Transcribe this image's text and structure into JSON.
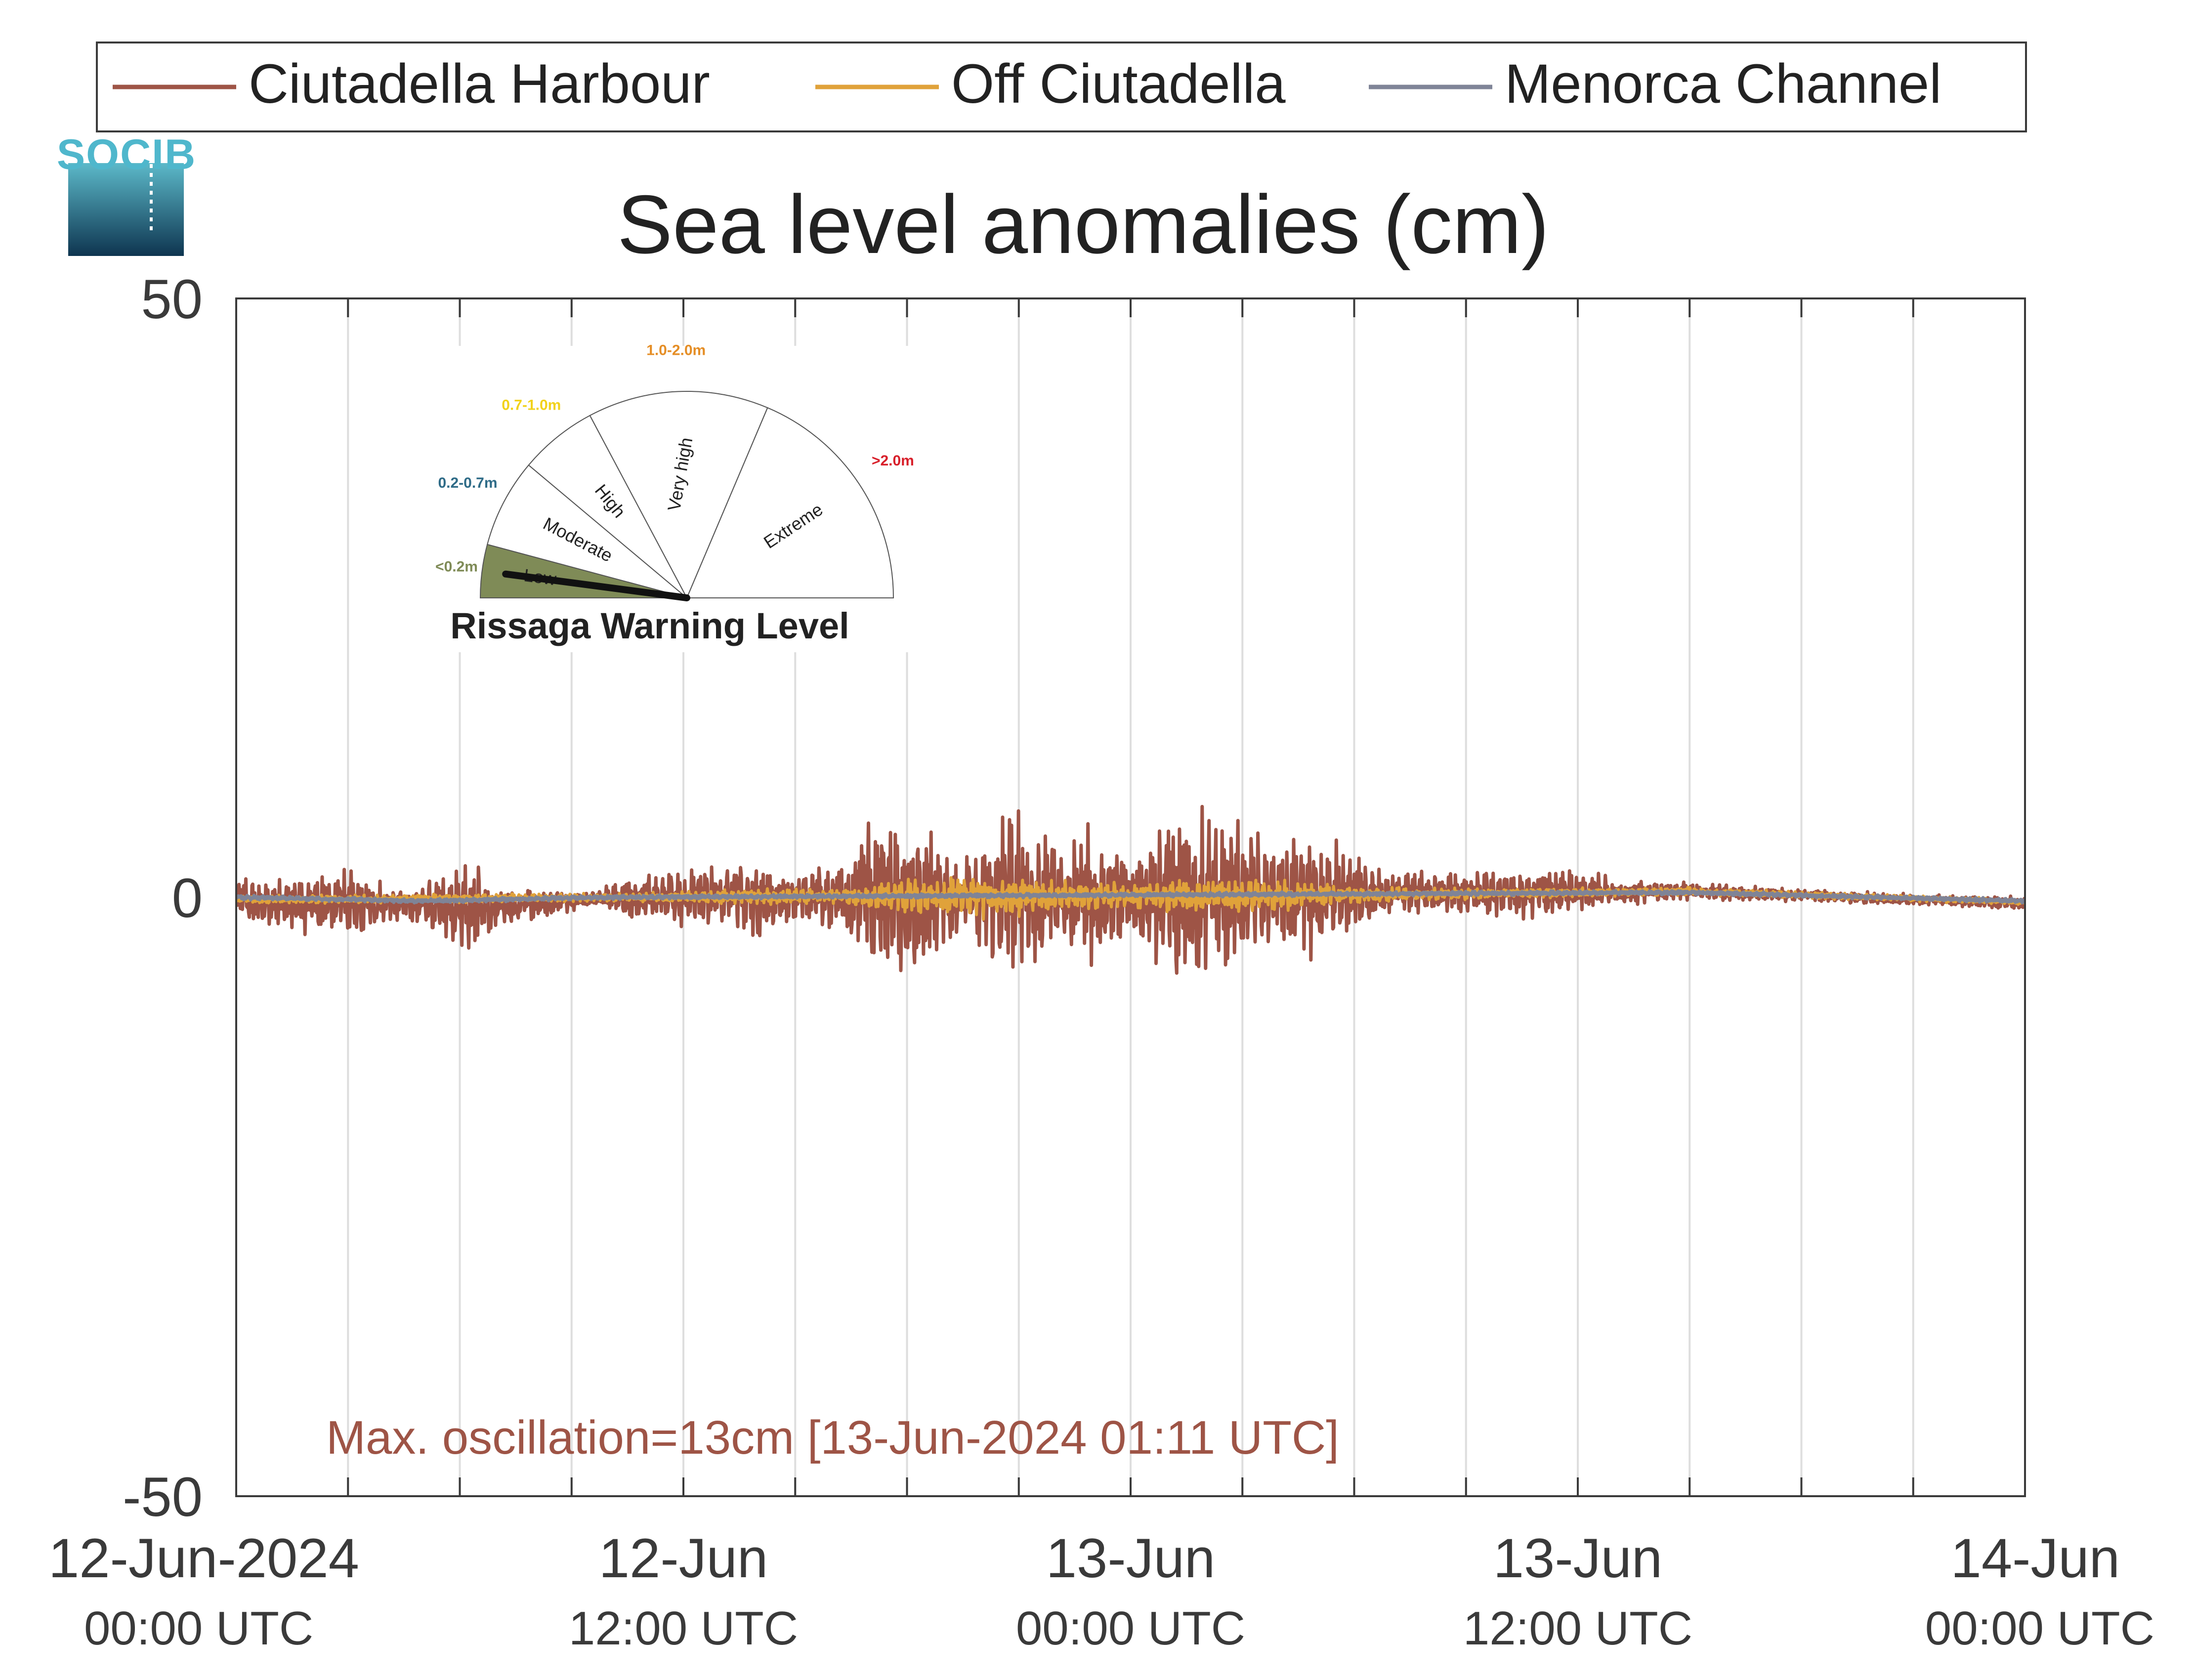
{
  "logo": {
    "text": "SOCIB",
    "colors": {
      "text": "#4fb7cc",
      "top": "#5cb9c9",
      "bottom": "#0e3550"
    }
  },
  "legend": {
    "placement": "top",
    "items": [
      {
        "label": "Ciutadella Harbour",
        "color": "#9e5446"
      },
      {
        "label": "Off Ciutadella",
        "color": "#e0a23a"
      },
      {
        "label": "Menorca Channel",
        "color": "#7f8497"
      }
    ]
  },
  "chart_data": {
    "type": "line",
    "title": "Sea level anomalies (cm)",
    "xlabel": "",
    "ylabel": "",
    "ylim": [
      -50,
      50
    ],
    "yticks": [
      {
        "value": 50,
        "label": "50"
      },
      {
        "value": 0,
        "label": "0"
      },
      {
        "value": -50,
        "label": "-50"
      }
    ],
    "x_range_hours": [
      0,
      48
    ],
    "xticks": [
      {
        "hour": 0,
        "line1": "12-Jun-2024",
        "line2": "00:00 UTC"
      },
      {
        "hour": 12,
        "line1": "12-Jun",
        "line2": "12:00 UTC"
      },
      {
        "hour": 24,
        "line1": "13-Jun",
        "line2": "00:00 UTC"
      },
      {
        "hour": 36,
        "line1": "13-Jun",
        "line2": "12:00 UTC"
      },
      {
        "hour": 48,
        "line1": "14-Jun",
        "line2": "00:00 UTC"
      }
    ],
    "grid_every_hours": 3,
    "grid": true,
    "series": [
      {
        "name": "Ciutadella Harbour",
        "color": "#9e5446",
        "amplitude_envelope_cm": [
          [
            0,
            1.5
          ],
          [
            1.5,
            2
          ],
          [
            3,
            2.5
          ],
          [
            4.5,
            1
          ],
          [
            5.5,
            2.5
          ],
          [
            6.5,
            3
          ],
          [
            7,
            1.5
          ],
          [
            8.5,
            1
          ],
          [
            9.5,
            0.5
          ],
          [
            10.5,
            1.5
          ],
          [
            12,
            2
          ],
          [
            13.5,
            2.5
          ],
          [
            14,
            3
          ],
          [
            15,
            1.5
          ],
          [
            16,
            2.5
          ],
          [
            17,
            5
          ],
          [
            18,
            6
          ],
          [
            19,
            4.5
          ],
          [
            19.5,
            2.5
          ],
          [
            20,
            5
          ],
          [
            21,
            6
          ],
          [
            22,
            4
          ],
          [
            23,
            5
          ],
          [
            24,
            3
          ],
          [
            25,
            6.5
          ],
          [
            26,
            6
          ],
          [
            27,
            5
          ],
          [
            28,
            4
          ],
          [
            29,
            5
          ],
          [
            30,
            3
          ],
          [
            31,
            1.5
          ],
          [
            33,
            1.5
          ],
          [
            35,
            2
          ],
          [
            37,
            1
          ],
          [
            39,
            0.6
          ],
          [
            42,
            0.5
          ],
          [
            45,
            0.4
          ],
          [
            48,
            0.5
          ]
        ],
        "offset_envelope_cm": [
          [
            0,
            0
          ],
          [
            0.5,
            -0.5
          ],
          [
            4,
            -0.6
          ],
          [
            7,
            -0.8
          ],
          [
            9,
            -0.3
          ],
          [
            10,
            0
          ],
          [
            12,
            0
          ],
          [
            20,
            0
          ],
          [
            28,
            0.3
          ],
          [
            39,
            0.5
          ],
          [
            43,
            0
          ],
          [
            48,
            -0.5
          ]
        ]
      },
      {
        "name": "Off Ciutadella",
        "color": "#e0a23a",
        "amplitude_envelope_cm": [
          [
            0,
            0.3
          ],
          [
            10,
            0.3
          ],
          [
            12,
            0.4
          ],
          [
            14,
            0.6
          ],
          [
            16,
            0.5
          ],
          [
            17,
            0.8
          ],
          [
            18,
            1.2
          ],
          [
            20,
            1.5
          ],
          [
            22,
            1.2
          ],
          [
            24,
            1
          ],
          [
            26,
            1.3
          ],
          [
            28,
            1.1
          ],
          [
            30,
            0.6
          ],
          [
            33,
            0.4
          ],
          [
            38,
            0.3
          ],
          [
            48,
            0.2
          ]
        ],
        "offset_envelope_cm": [
          [
            0,
            -0.2
          ],
          [
            10,
            0
          ],
          [
            30,
            0.2
          ],
          [
            39,
            0.5
          ],
          [
            44,
            0
          ],
          [
            48,
            -0.4
          ]
        ]
      },
      {
        "name": "Menorca Channel",
        "color": "#7f8497",
        "amplitude_envelope_cm": [
          [
            0,
            0.15
          ],
          [
            48,
            0.15
          ]
        ],
        "offset_envelope_cm": [
          [
            0,
            0
          ],
          [
            5,
            -0.3
          ],
          [
            10,
            0
          ],
          [
            39,
            0.4
          ],
          [
            44,
            0
          ],
          [
            48,
            -0.3
          ]
        ]
      }
    ],
    "annotation": "Max. oscillation=13cm [13-Jun-2024 01:11 UTC]",
    "annotation_color": "#9e5446"
  },
  "warning_gauge": {
    "title": "Rissaga Warning Level",
    "current_level": "Low",
    "levels": [
      {
        "label": "Low",
        "range": "<0.2m",
        "color": "#7f8b57",
        "active": true
      },
      {
        "label": "Moderate",
        "range": "0.2-0.7m",
        "color": "#2e6b87",
        "active": false
      },
      {
        "label": "High",
        "range": "0.7-1.0m",
        "color": "#f2d21b",
        "active": false
      },
      {
        "label": "Very high",
        "range": "1.0-2.0m",
        "color": "#e58e26",
        "active": false
      },
      {
        "label": "Extreme",
        "range": ">2.0m",
        "color": "#d81f2a",
        "active": false
      }
    ],
    "active_fill": "#7f8b57"
  }
}
